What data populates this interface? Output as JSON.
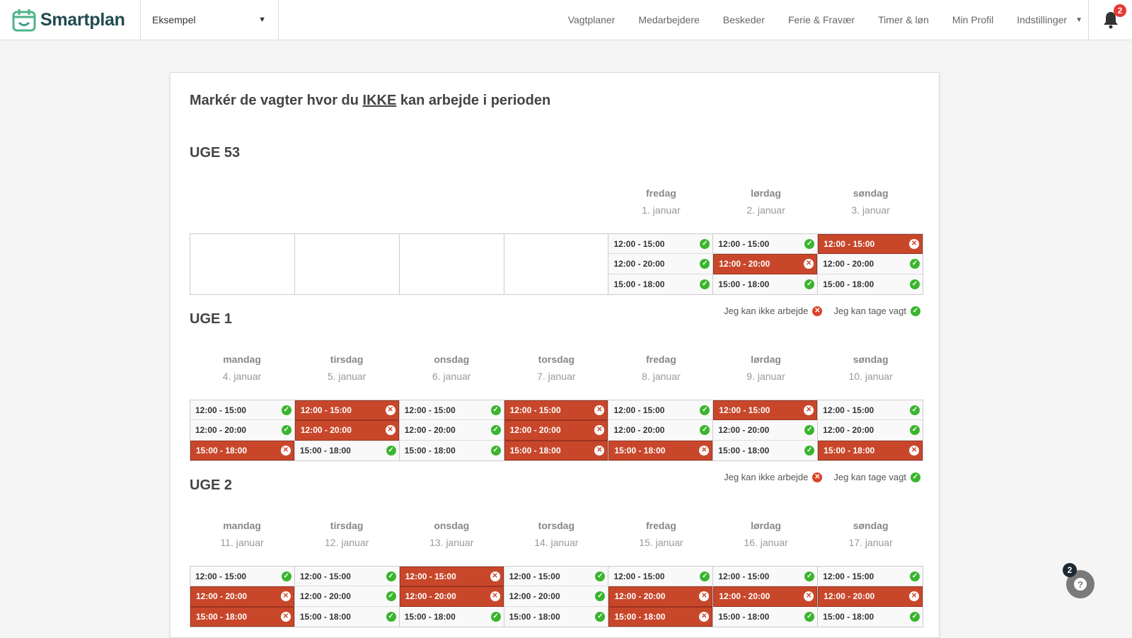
{
  "header": {
    "logo": "Smartplan",
    "org_select": "Eksempel",
    "nav": [
      "Vagtplaner",
      "Medarbejdere",
      "Beskeder",
      "Ferie & Fravær",
      "Timer & løn",
      "Min Profil",
      "Indstillinger"
    ],
    "notification_count": "2"
  },
  "page": {
    "title_pre": "Markér de vagter hvor du ",
    "title_em": "IKKE",
    "title_post": " kan arbejde i perioden"
  },
  "legend": {
    "cannot": "Jeg kan ikke arbejde",
    "can": "Jeg kan tage vagt"
  },
  "colors": {
    "blocked": "#c8472b",
    "available": "#3ab52e"
  },
  "weeks": [
    {
      "title": "UGE 53",
      "days": [
        {
          "name": "",
          "date": "",
          "shifts": []
        },
        {
          "name": "",
          "date": "",
          "shifts": []
        },
        {
          "name": "",
          "date": "",
          "shifts": []
        },
        {
          "name": "",
          "date": "",
          "shifts": []
        },
        {
          "name": "fredag",
          "date": "1. januar",
          "shifts": [
            {
              "time": "12:00 - 15:00",
              "blocked": false
            },
            {
              "time": "12:00 - 20:00",
              "blocked": false
            },
            {
              "time": "15:00 - 18:00",
              "blocked": false
            }
          ]
        },
        {
          "name": "lørdag",
          "date": "2. januar",
          "shifts": [
            {
              "time": "12:00 - 15:00",
              "blocked": false
            },
            {
              "time": "12:00 - 20:00",
              "blocked": true
            },
            {
              "time": "15:00 - 18:00",
              "blocked": false
            }
          ]
        },
        {
          "name": "søndag",
          "date": "3. januar",
          "shifts": [
            {
              "time": "12:00 - 15:00",
              "blocked": true
            },
            {
              "time": "12:00 - 20:00",
              "blocked": false
            },
            {
              "time": "15:00 - 18:00",
              "blocked": false
            }
          ]
        }
      ]
    },
    {
      "title": "UGE 1",
      "days": [
        {
          "name": "mandag",
          "date": "4. januar",
          "shifts": [
            {
              "time": "12:00 - 15:00",
              "blocked": false
            },
            {
              "time": "12:00 - 20:00",
              "blocked": false
            },
            {
              "time": "15:00 - 18:00",
              "blocked": true
            }
          ]
        },
        {
          "name": "tirsdag",
          "date": "5. januar",
          "shifts": [
            {
              "time": "12:00 - 15:00",
              "blocked": true
            },
            {
              "time": "12:00 - 20:00",
              "blocked": true
            },
            {
              "time": "15:00 - 18:00",
              "blocked": false
            }
          ]
        },
        {
          "name": "onsdag",
          "date": "6. januar",
          "shifts": [
            {
              "time": "12:00 - 15:00",
              "blocked": false
            },
            {
              "time": "12:00 - 20:00",
              "blocked": false
            },
            {
              "time": "15:00 - 18:00",
              "blocked": false
            }
          ]
        },
        {
          "name": "torsdag",
          "date": "7. januar",
          "shifts": [
            {
              "time": "12:00 - 15:00",
              "blocked": true
            },
            {
              "time": "12:00 - 20:00",
              "blocked": true
            },
            {
              "time": "15:00 - 18:00",
              "blocked": true
            }
          ]
        },
        {
          "name": "fredag",
          "date": "8. januar",
          "shifts": [
            {
              "time": "12:00 - 15:00",
              "blocked": false
            },
            {
              "time": "12:00 - 20:00",
              "blocked": false
            },
            {
              "time": "15:00 - 18:00",
              "blocked": true
            }
          ]
        },
        {
          "name": "lørdag",
          "date": "9. januar",
          "shifts": [
            {
              "time": "12:00 - 15:00",
              "blocked": true
            },
            {
              "time": "12:00 - 20:00",
              "blocked": false
            },
            {
              "time": "15:00 - 18:00",
              "blocked": false
            }
          ]
        },
        {
          "name": "søndag",
          "date": "10. januar",
          "shifts": [
            {
              "time": "12:00 - 15:00",
              "blocked": false
            },
            {
              "time": "12:00 - 20:00",
              "blocked": false
            },
            {
              "time": "15:00 - 18:00",
              "blocked": true
            }
          ]
        }
      ]
    },
    {
      "title": "UGE 2",
      "days": [
        {
          "name": "mandag",
          "date": "11. januar",
          "shifts": [
            {
              "time": "12:00 - 15:00",
              "blocked": false
            },
            {
              "time": "12:00 - 20:00",
              "blocked": true
            },
            {
              "time": "15:00 - 18:00",
              "blocked": true
            }
          ]
        },
        {
          "name": "tirsdag",
          "date": "12. januar",
          "shifts": [
            {
              "time": "12:00 - 15:00",
              "blocked": false
            },
            {
              "time": "12:00 - 20:00",
              "blocked": false
            },
            {
              "time": "15:00 - 18:00",
              "blocked": false
            }
          ]
        },
        {
          "name": "onsdag",
          "date": "13. januar",
          "shifts": [
            {
              "time": "12:00 - 15:00",
              "blocked": true
            },
            {
              "time": "12:00 - 20:00",
              "blocked": true
            },
            {
              "time": "15:00 - 18:00",
              "blocked": false
            }
          ]
        },
        {
          "name": "torsdag",
          "date": "14. januar",
          "shifts": [
            {
              "time": "12:00 - 15:00",
              "blocked": false
            },
            {
              "time": "12:00 - 20:00",
              "blocked": false
            },
            {
              "time": "15:00 - 18:00",
              "blocked": false
            }
          ]
        },
        {
          "name": "fredag",
          "date": "15. januar",
          "shifts": [
            {
              "time": "12:00 - 15:00",
              "blocked": false
            },
            {
              "time": "12:00 - 20:00",
              "blocked": true
            },
            {
              "time": "15:00 - 18:00",
              "blocked": true
            }
          ]
        },
        {
          "name": "lørdag",
          "date": "16. januar",
          "shifts": [
            {
              "time": "12:00 - 15:00",
              "blocked": false
            },
            {
              "time": "12:00 - 20:00",
              "blocked": true
            },
            {
              "time": "15:00 - 18:00",
              "blocked": false
            }
          ]
        },
        {
          "name": "søndag",
          "date": "17. januar",
          "shifts": [
            {
              "time": "12:00 - 15:00",
              "blocked": false
            },
            {
              "time": "12:00 - 20:00",
              "blocked": true
            },
            {
              "time": "15:00 - 18:00",
              "blocked": false
            }
          ]
        }
      ]
    }
  ],
  "help": {
    "badge": "2",
    "icon": "?"
  }
}
